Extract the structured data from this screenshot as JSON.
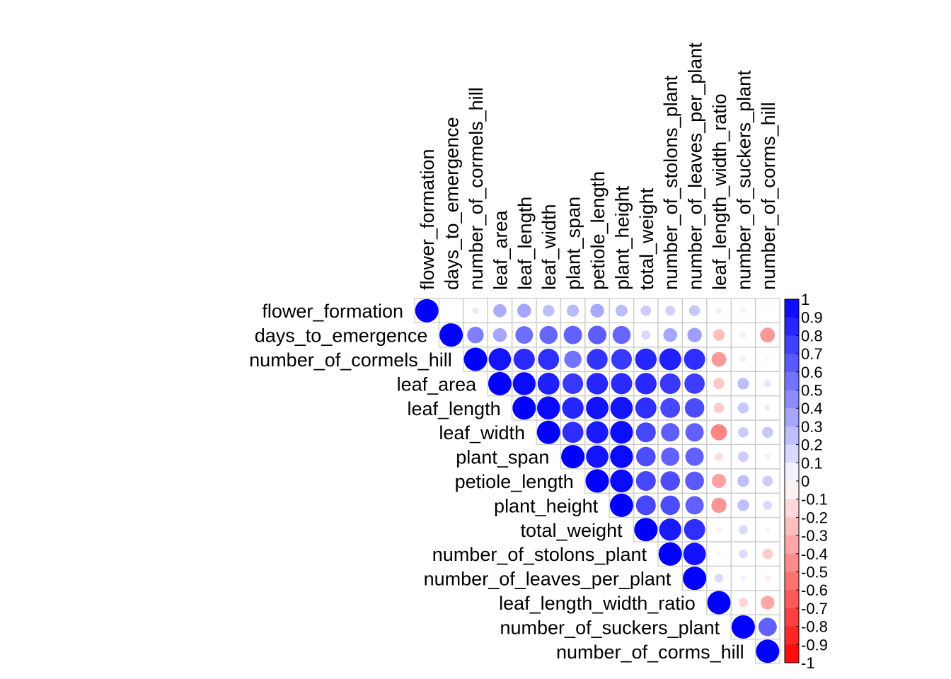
{
  "chart_data": {
    "type": "heatmap",
    "subtype": "upper-triangular correlation matrix (circles)",
    "variables": [
      "flower_formation",
      "days_to_emergence",
      "number_of_cormels_hill",
      "leaf_area",
      "leaf_length",
      "leaf_width",
      "plant_span",
      "petiole_length",
      "plant_height",
      "total_weight",
      "number_of_stolons_plant",
      "number_of_leaves_per_plant",
      "leaf_length_width_ratio",
      "number_of_suckers_plant",
      "number_of_corms_hill"
    ],
    "matrix": [
      [
        1.0,
        0.02,
        0.08,
        0.32,
        0.35,
        0.25,
        0.27,
        0.34,
        0.26,
        0.2,
        0.18,
        0.22,
        0.07,
        -0.06,
        -0.03
      ],
      [
        null,
        1.0,
        0.5,
        0.35,
        0.57,
        0.6,
        0.62,
        0.63,
        0.6,
        0.15,
        0.35,
        0.38,
        -0.25,
        -0.07,
        -0.4
      ],
      [
        null,
        null,
        1.0,
        0.92,
        0.83,
        0.82,
        0.55,
        0.8,
        0.78,
        0.85,
        0.88,
        0.82,
        -0.4,
        0.06,
        -0.04
      ],
      [
        null,
        null,
        null,
        1.0,
        0.96,
        0.88,
        0.78,
        0.85,
        0.83,
        0.84,
        0.78,
        0.76,
        -0.22,
        0.25,
        0.1
      ],
      [
        null,
        null,
        null,
        null,
        1.0,
        0.97,
        0.85,
        0.93,
        0.92,
        0.82,
        0.72,
        0.7,
        -0.2,
        0.22,
        0.07
      ],
      [
        null,
        null,
        null,
        null,
        null,
        1.0,
        0.82,
        0.9,
        0.95,
        0.72,
        0.63,
        0.62,
        -0.48,
        0.2,
        0.22
      ],
      [
        null,
        null,
        null,
        null,
        null,
        null,
        1.0,
        0.92,
        0.96,
        0.7,
        0.62,
        0.62,
        -0.13,
        0.2,
        0.06
      ],
      [
        null,
        null,
        null,
        null,
        null,
        null,
        null,
        1.0,
        0.96,
        0.72,
        0.7,
        0.65,
        -0.37,
        0.25,
        0.2
      ],
      [
        null,
        null,
        null,
        null,
        null,
        null,
        null,
        null,
        1.0,
        0.72,
        0.7,
        0.62,
        -0.42,
        0.25,
        0.15
      ],
      [
        null,
        null,
        null,
        null,
        null,
        null,
        null,
        null,
        null,
        1.0,
        0.9,
        0.82,
        -0.06,
        0.15,
        0.04
      ],
      [
        null,
        null,
        null,
        null,
        null,
        null,
        null,
        null,
        null,
        null,
        1.0,
        0.93,
        -0.04,
        0.14,
        -0.2
      ],
      [
        null,
        null,
        null,
        null,
        null,
        null,
        null,
        null,
        null,
        null,
        null,
        1.0,
        0.14,
        0.06,
        -0.07
      ],
      [
        null,
        null,
        null,
        null,
        null,
        null,
        null,
        null,
        null,
        null,
        null,
        null,
        1.0,
        -0.16,
        -0.35
      ],
      [
        null,
        null,
        null,
        null,
        null,
        null,
        null,
        null,
        null,
        null,
        null,
        null,
        null,
        1.0,
        0.62
      ],
      [
        null,
        null,
        null,
        null,
        null,
        null,
        null,
        null,
        null,
        null,
        null,
        null,
        null,
        null,
        1.0
      ]
    ],
    "color_scale": {
      "min": -1,
      "max": 1,
      "negative_color": "#ff0000",
      "zero_color": "#ffffff",
      "positive_color": "#0000ff",
      "tick_labels": [
        "1",
        "0.9",
        "0.8",
        "0.7",
        "0.6",
        "0.5",
        "0.4",
        "0.3",
        "0.2",
        "0.1",
        "0",
        "-0.1",
        "-0.2",
        "-0.3",
        "-0.4",
        "-0.5",
        "-0.6",
        "-0.7",
        "-0.8",
        "-0.9",
        "-1"
      ]
    },
    "legend_placement": "right",
    "grid": true,
    "cell_border_color": "#cccccc",
    "title": "",
    "xlabel": "",
    "ylabel": ""
  }
}
